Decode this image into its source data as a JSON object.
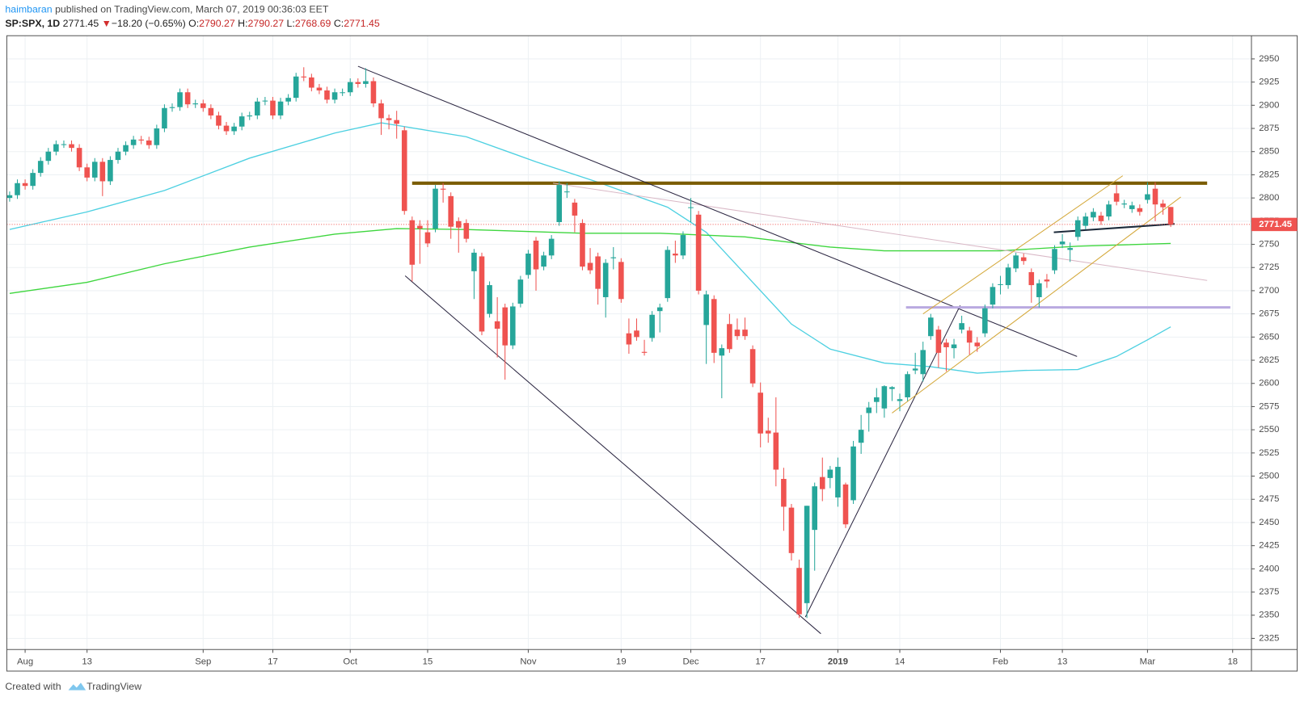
{
  "header": {
    "author": "haimbaran",
    "published": "published on TradingView.com, March 07, 2019 00:36:03 EET",
    "symbol": "SP:SPX, 1D",
    "price": "2771.45",
    "arrow": "▼",
    "change": "−18.20 (−0.65%)",
    "o_label": "O:",
    "o": "2790.27",
    "h_label": "H:",
    "h": "2790.27",
    "l_label": "L:",
    "l": "2768.69",
    "c_label": "C:",
    "c": "2771.45"
  },
  "footer": {
    "created": "Created with",
    "brand": "TradingView"
  },
  "chart_data": {
    "type": "candlestick",
    "up_color": "#26a69a",
    "down_color": "#ef5350",
    "categories": [
      null,
      null,
      "Aug",
      null,
      null,
      null,
      null,
      null,
      null,
      null,
      "13",
      null,
      null,
      null,
      null,
      null,
      null,
      null,
      null,
      null,
      null,
      null,
      null,
      null,
      null,
      "Sep",
      null,
      null,
      null,
      null,
      null,
      null,
      null,
      null,
      "17",
      null,
      null,
      null,
      null,
      null,
      null,
      null,
      null,
      null,
      "Oct",
      null,
      null,
      null,
      null,
      null,
      null,
      null,
      null,
      null,
      "15",
      null,
      null,
      null,
      null,
      null,
      null,
      null,
      null,
      null,
      null,
      null,
      null,
      "Nov",
      null,
      null,
      null,
      null,
      null,
      null,
      null,
      null,
      null,
      null,
      null,
      "19",
      null,
      null,
      null,
      null,
      null,
      null,
      null,
      null,
      "Dec",
      null,
      null,
      null,
      null,
      null,
      null,
      null,
      null,
      "17",
      null,
      null,
      null,
      null,
      null,
      null,
      null,
      null,
      null,
      "2019",
      null,
      null,
      null,
      null,
      null,
      null,
      null,
      "14",
      null,
      null,
      null,
      null,
      null,
      null,
      null,
      null,
      null,
      null,
      null,
      null,
      "Feb",
      null,
      null,
      null,
      null,
      null,
      null,
      null,
      "13",
      null,
      null,
      null,
      null,
      null,
      null,
      null,
      null,
      null,
      null,
      "Mar",
      null,
      null,
      null,
      null,
      null,
      null,
      null,
      null,
      null,
      null,
      "18"
    ],
    "open": [
      2800,
      2803,
      2816,
      2813,
      2827,
      2840,
      2850,
      2858,
      2858,
      2854,
      2833,
      2822,
      2839,
      2818,
      2841,
      2850,
      2857,
      2863,
      2862,
      2857,
      2875,
      2897,
      2898,
      2914,
      2901,
      2902,
      2897,
      2889,
      2878,
      2872,
      2877,
      2888,
      2889,
      2905,
      2905,
      2889,
      2904,
      2908,
      2931,
      2930,
      2919,
      2916,
      2906,
      2914,
      2914,
      2925,
      2923,
      2926,
      2902,
      2886,
      2884,
      2873,
      2776,
      2770,
      2763,
      2767,
      2810,
      2802,
      2775,
      2773,
      2721,
      2737,
      2675,
      2667,
      2682,
      2641,
      2686,
      2717,
      2754,
      2726,
      2738,
      2774,
      2807,
      2795,
      2773,
      2730,
      2737,
      2693,
      2735,
      2731,
      2654,
      2657,
      2634,
      2649,
      2678,
      2692,
      2740,
      2738,
      2790,
      2782,
      2663,
      2691,
      2630,
      2664,
      2658,
      2658,
      2637,
      2590,
      2549,
      2547,
      2497,
      2466,
      2401,
      2363,
      2442,
      2499,
      2498,
      2477,
      2491,
      2474,
      2536,
      2568,
      2580,
      2573,
      2594,
      2581,
      2585,
      2614,
      2610,
      2651,
      2658,
      2644,
      2638,
      2658,
      2657,
      2644,
      2654,
      2685,
      2707,
      2706,
      2724,
      2736,
      2720,
      2693,
      2712,
      2722,
      2750,
      2744,
      2758,
      2770,
      2779,
      2781,
      2780,
      2805,
      2793,
      2788,
      2789,
      2798,
      2810,
      2794,
      2790.27,
      null,
      null,
      null,
      null,
      null,
      null,
      null,
      null
    ],
    "high": [
      2807,
      2820,
      2820,
      2831,
      2844,
      2854,
      2862,
      2862,
      2862,
      2858,
      2837,
      2843,
      2843,
      2845,
      2854,
      2861,
      2867,
      2867,
      2866,
      2879,
      2901,
      2902,
      2918,
      2918,
      2906,
      2906,
      2901,
      2893,
      2882,
      2881,
      2892,
      2893,
      2908,
      2909,
      2909,
      2908,
      2912,
      2935,
      2941,
      2934,
      2923,
      2920,
      2918,
      2918,
      2929,
      2929,
      2940,
      2930,
      2906,
      2890,
      2894,
      2877,
      2780,
      2776,
      2776,
      2814,
      2816,
      2806,
      2779,
      2777,
      2745,
      2741,
      2710,
      2693,
      2686,
      2687,
      2716,
      2744,
      2758,
      2742,
      2760,
      2818,
      2816,
      2799,
      2777,
      2746,
      2741,
      2734,
      2747,
      2735,
      2670,
      2670,
      2647,
      2678,
      2686,
      2748,
      2754,
      2764,
      2800,
      2786,
      2700,
      2695,
      2642,
      2675,
      2670,
      2671,
      2641,
      2601,
      2563,
      2585,
      2509,
      2470,
      2410,
      2468,
      2493,
      2520,
      2511,
      2520,
      2493,
      2538,
      2566,
      2580,
      2595,
      2598,
      2597,
      2589,
      2613,
      2633,
      2645,
      2675,
      2662,
      2648,
      2648,
      2673,
      2661,
      2650,
      2685,
      2708,
      2716,
      2729,
      2741,
      2740,
      2724,
      2712,
      2718,
      2749,
      2761,
      2752,
      2780,
      2784,
      2789,
      2785,
      2797,
      2814,
      2798,
      2796,
      2793,
      2817,
      2817,
      2798,
      2790.27,
      null,
      null,
      null,
      null,
      null,
      null,
      null,
      null
    ],
    "low": [
      2796,
      2799,
      2809,
      2809,
      2823,
      2836,
      2846,
      2854,
      2850,
      2829,
      2818,
      2818,
      2802,
      2814,
      2837,
      2846,
      2853,
      2858,
      2853,
      2853,
      2871,
      2893,
      2894,
      2897,
      2897,
      2893,
      2885,
      2874,
      2868,
      2868,
      2873,
      2884,
      2885,
      2900,
      2885,
      2885,
      2900,
      2904,
      2926,
      2915,
      2912,
      2902,
      2902,
      2910,
      2910,
      2919,
      2919,
      2898,
      2868,
      2874,
      2864,
      2782,
      2710,
      2729,
      2747,
      2763,
      2795,
      2756,
      2741,
      2752,
      2691,
      2652,
      2671,
      2628,
      2604,
      2637,
      2682,
      2713,
      2700,
      2722,
      2734,
      2770,
      2800,
      2763,
      2722,
      2718,
      2685,
      2671,
      2723,
      2687,
      2632,
      2646,
      2630,
      2645,
      2655,
      2688,
      2730,
      2734,
      2774,
      2696,
      2621,
      2622,
      2584,
      2633,
      2647,
      2647,
      2596,
      2531,
      2536,
      2489,
      2441,
      2409,
      2347,
      2347,
      2398,
      2473,
      2487,
      2467,
      2444,
      2470,
      2524,
      2548,
      2568,
      2563,
      2581,
      2570,
      2581,
      2610,
      2602,
      2647,
      2617,
      2613,
      2627,
      2654,
      2631,
      2634,
      2650,
      2681,
      2696,
      2702,
      2720,
      2728,
      2687,
      2682,
      2703,
      2718,
      2746,
      2731,
      2754,
      2766,
      2775,
      2771,
      2776,
      2792,
      2789,
      2784,
      2781,
      2794,
      2775,
      2782,
      2768.69,
      null,
      null,
      null,
      null,
      null,
      null,
      null,
      null
    ],
    "close": [
      2803,
      2816,
      2813,
      2827,
      2840,
      2850,
      2858,
      2858,
      2854,
      2833,
      2822,
      2839,
      2818,
      2841,
      2850,
      2857,
      2863,
      2862,
      2857,
      2875,
      2897,
      2898,
      2914,
      2901,
      2902,
      2897,
      2889,
      2878,
      2872,
      2877,
      2888,
      2889,
      2904,
      2905,
      2889,
      2904,
      2908,
      2931,
      2930,
      2919,
      2916,
      2906,
      2914,
      2914,
      2925,
      2923,
      2926,
      2902,
      2886,
      2884,
      2880,
      2786,
      2728,
      2767,
      2751,
      2810,
      2809,
      2769,
      2768,
      2756,
      2741,
      2656,
      2706,
      2659,
      2641,
      2683,
      2712,
      2740,
      2723,
      2738,
      2756,
      2814,
      2807,
      2781,
      2726,
      2722,
      2702,
      2730,
      2736,
      2691,
      2642,
      2650,
      2633,
      2674,
      2682,
      2744,
      2738,
      2760,
      2790,
      2700,
      2696,
      2633,
      2638,
      2637,
      2651,
      2651,
      2600,
      2546,
      2546,
      2507,
      2467,
      2417,
      2351,
      2468,
      2489,
      2486,
      2507,
      2510,
      2448,
      2532,
      2550,
      2574,
      2585,
      2597,
      2596,
      2583,
      2610,
      2616,
      2636,
      2671,
      2633,
      2639,
      2642,
      2665,
      2644,
      2640,
      2681,
      2704,
      2707,
      2725,
      2738,
      2732,
      2706,
      2708,
      2710,
      2745,
      2753,
      2746,
      2776,
      2780,
      2785,
      2775,
      2793,
      2796,
      2794,
      2792,
      2785,
      2804,
      2793,
      2790,
      2771.45,
      null,
      null,
      null,
      null,
      null,
      null,
      null,
      null
    ],
    "ylim": [
      2313,
      2975
    ],
    "yticks": [
      2325,
      2350,
      2375,
      2400,
      2425,
      2450,
      2475,
      2500,
      2525,
      2550,
      2575,
      2600,
      2625,
      2650,
      2675,
      2700,
      2725,
      2750,
      2775,
      2800,
      2825,
      2850,
      2875,
      2900,
      2925,
      2950
    ],
    "grid": true,
    "last": 2771.45,
    "last_color": "#ef5350",
    "moving_averages": [
      {
        "color": "#4dd0e1",
        "x": [
          0,
          10,
          20,
          31,
          42,
          48,
          51,
          59,
          68,
          76,
          85,
          90,
          95,
          101,
          106,
          113,
          119,
          125,
          131,
          138,
          143,
          147,
          150
        ],
        "values": [
          2766,
          2785,
          2808,
          2843,
          2870,
          2881,
          2877,
          2866,
          2839,
          2817,
          2790,
          2763,
          2718,
          2664,
          2637,
          2622,
          2618,
          2611,
          2614,
          2615,
          2629,
          2647,
          2661
        ]
      },
      {
        "color": "#3ed63e",
        "x": [
          0,
          10,
          20,
          31,
          42,
          50,
          59,
          74,
          84,
          95,
          106,
          113,
          128,
          138,
          150
        ],
        "values": [
          2697,
          2709,
          2729,
          2747,
          2761,
          2767,
          2766,
          2762,
          2762,
          2758,
          2747,
          2743,
          2743,
          2748,
          2751
        ]
      }
    ],
    "trendlines": [
      {
        "color": "#7a5c00",
        "width": 4,
        "x": [
          52,
          154.7
        ],
        "values": [
          2816,
          2816
        ]
      },
      {
        "color": "#d9b8c6",
        "width": 1,
        "x": [
          70.2,
          154.7
        ],
        "values": [
          2816,
          2711
        ]
      },
      {
        "color": "#2a2540",
        "width": 1,
        "x": [
          45,
          137.9
        ],
        "values": [
          2942,
          2629
        ]
      },
      {
        "color": "#2a2540",
        "width": 1,
        "x": [
          51.1,
          104.8
        ],
        "values": [
          2716,
          2330
        ]
      },
      {
        "color": "#2a2540",
        "width": 1,
        "x": [
          102.8,
          122.8
        ],
        "values": [
          2348,
          2684
        ]
      },
      {
        "color": "#b9a9e0",
        "width": 3,
        "x": [
          115.8,
          157.7
        ],
        "values": [
          2682,
          2682
        ]
      },
      {
        "color": "#d4a83a",
        "width": 1,
        "x": [
          118,
          143.8
        ],
        "values": [
          2675,
          2824
        ]
      },
      {
        "color": "#d4a83a",
        "width": 1,
        "x": [
          114,
          151.3
        ],
        "values": [
          2568,
          2801
        ]
      },
      {
        "color": "#1c2a3a",
        "width": 2,
        "x": [
          134.9,
          150.5
        ],
        "values": [
          2763,
          2772
        ]
      }
    ]
  }
}
